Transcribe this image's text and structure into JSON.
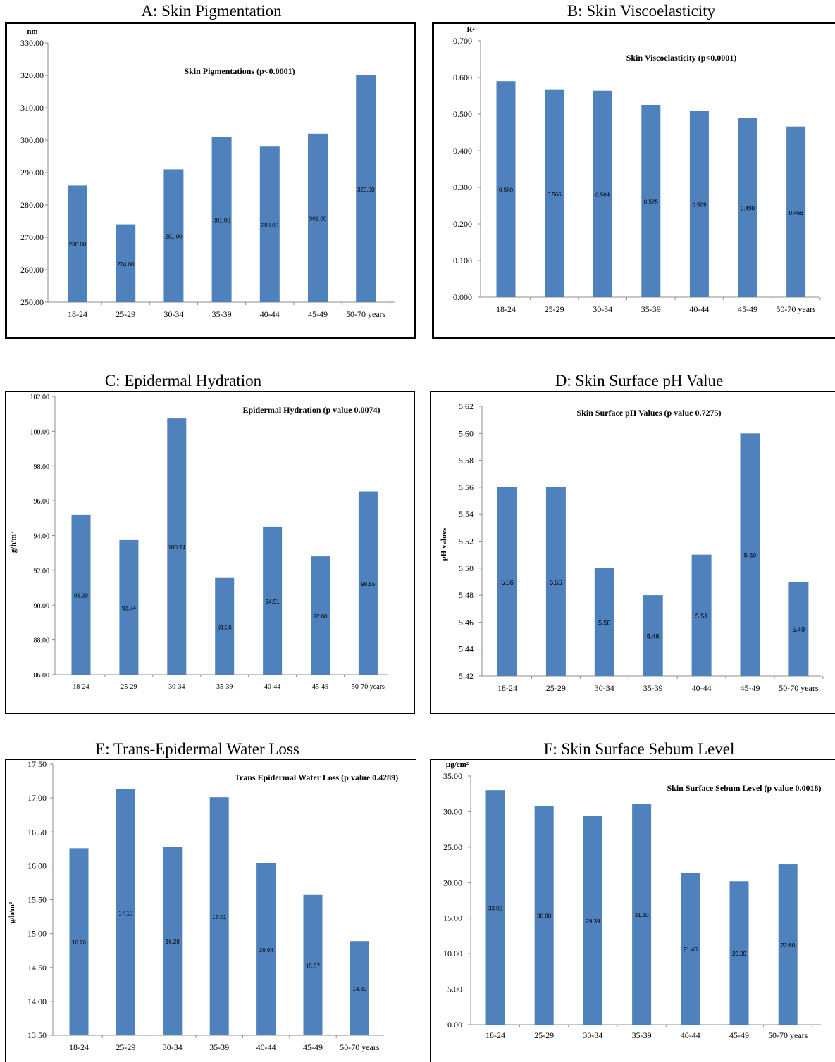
{
  "chart_data": [
    {
      "panel_title": "A: Skin Pigmentation",
      "type": "bar",
      "title": "Skin Pigmentations (p<0.0001)",
      "unit_label": "nm",
      "ylabel": "",
      "categories": [
        "18-24",
        "25-29",
        "30-34",
        "35-39",
        "40-44",
        "45-49",
        "50-70 years"
      ],
      "values": [
        286.0,
        274.0,
        291.0,
        301.0,
        298.0,
        302.0,
        320.0
      ],
      "value_labels": [
        "286.00",
        "274.00",
        "291.00",
        "301.00",
        "298.00",
        "302.00",
        "320.00"
      ],
      "ylim": [
        250,
        330
      ],
      "yticks": [
        "250.00",
        "260.00",
        "270.00",
        "280.00",
        "290.00",
        "300.00",
        "310.00",
        "320.00",
        "330.00"
      ],
      "color": "#4F81BD",
      "grid": false
    },
    {
      "panel_title": "B: Skin Viscoelasticity",
      "type": "bar",
      "title": "Skin  Viscoelasticity (p<0.0001)",
      "unit_label": "R²",
      "ylabel": "",
      "categories": [
        "18-24",
        "25-29",
        "30-34",
        "35-39",
        "40-44",
        "45-49",
        "50-70 years"
      ],
      "values": [
        0.59,
        0.566,
        0.564,
        0.525,
        0.509,
        0.49,
        0.466
      ],
      "value_labels": [
        "0.590",
        "0.566",
        "0.564",
        "0.525",
        "0.509",
        "0.490",
        "0.466"
      ],
      "ylim": [
        0,
        0.7
      ],
      "yticks": [
        "0.000",
        "0.100",
        "0.200",
        "0.300",
        "0.400",
        "0.500",
        "0.600",
        "0.700"
      ],
      "color": "#4F81BD",
      "grid": false
    },
    {
      "panel_title": "C: Epidermal Hydration",
      "type": "bar",
      "title": "Epidermal  Hydration  (p value 0.0074)",
      "unit_label": "",
      "ylabel": "g/h/m²",
      "categories": [
        "18-24",
        "25-29",
        "30-34",
        "35-39",
        "40-44",
        "45-49",
        "50-70 years"
      ],
      "values": [
        95.2,
        93.74,
        100.74,
        91.56,
        94.51,
        92.8,
        96.55
      ],
      "value_labels": [
        "95.20",
        "93.74",
        "100.74",
        "91.56",
        "94.51",
        "92.80",
        "96.55"
      ],
      "ylim": [
        86,
        102
      ],
      "yticks": [
        "86.00",
        "88.00",
        "90.00",
        "92.00",
        "94.00",
        "96.00",
        "98.00",
        "100.00",
        "102.00"
      ],
      "color": "#4F81BD",
      "grid": false
    },
    {
      "panel_title": "D: Skin Surface pH Value",
      "type": "bar",
      "title": "Skin Surface pH Values (p value 0.7275)",
      "unit_label": "",
      "ylabel": "pH values",
      "categories": [
        "18-24",
        "25-29",
        "30-34",
        "35-39",
        "40-44",
        "45-49",
        "50-70 years"
      ],
      "values": [
        5.56,
        5.56,
        5.5,
        5.48,
        5.51,
        5.6,
        5.49
      ],
      "value_labels": [
        "5.56",
        "5.56",
        "5.50",
        "5.48",
        "5.51",
        "5.60",
        "5.49"
      ],
      "ylim": [
        5.42,
        5.62
      ],
      "yticks": [
        "5.42",
        "5.44",
        "5.46",
        "5.48",
        "5.50",
        "5.52",
        "5.54",
        "5.56",
        "5.58",
        "5.60",
        "5.62"
      ],
      "color": "#4F81BD",
      "grid": false
    },
    {
      "panel_title": "E: Trans-Epidermal Water Loss",
      "type": "bar",
      "title": "Trans Epidermal  Water Loss (p value 0.4289)",
      "unit_label": "",
      "ylabel": "g/h/m²",
      "categories": [
        "18-24",
        "25-29",
        "30-34",
        "35-39",
        "40-44",
        "45-49",
        "50-70 years"
      ],
      "values": [
        16.26,
        17.13,
        16.28,
        17.01,
        16.04,
        15.57,
        14.89
      ],
      "value_labels": [
        "16.26",
        "17.13",
        "16.28",
        "17.01",
        "16.04",
        "15.57",
        "14.89"
      ],
      "ylim": [
        13.5,
        17.5
      ],
      "yticks": [
        "13.50",
        "14.00",
        "14.50",
        "15.00",
        "15.50",
        "16.00",
        "16.50",
        "17.00",
        "17.50"
      ],
      "color": "#4F81BD",
      "grid": false
    },
    {
      "panel_title": "F: Skin Surface Sebum Level",
      "type": "bar",
      "title": "Skin Surface Sebum Level (p value 0.0018)",
      "unit_label": "µg/cm²",
      "ylabel": "",
      "categories": [
        "18-24",
        "25-29",
        "30-34",
        "35-39",
        "40-44",
        "45-49",
        "50-70 years"
      ],
      "values": [
        33.0,
        30.8,
        29.39,
        31.1,
        21.4,
        20.2,
        22.6
      ],
      "value_labels": [
        "33.00",
        "30.80",
        "29.39",
        "31.10",
        "21.40",
        "20.20",
        "22.60"
      ],
      "ylim": [
        0,
        35
      ],
      "yticks": [
        "0.00",
        "5.00",
        "10.00",
        "15.00",
        "20.00",
        "25.00",
        "30.00",
        "35.00"
      ],
      "color": "#4F81BD",
      "grid": false
    }
  ]
}
